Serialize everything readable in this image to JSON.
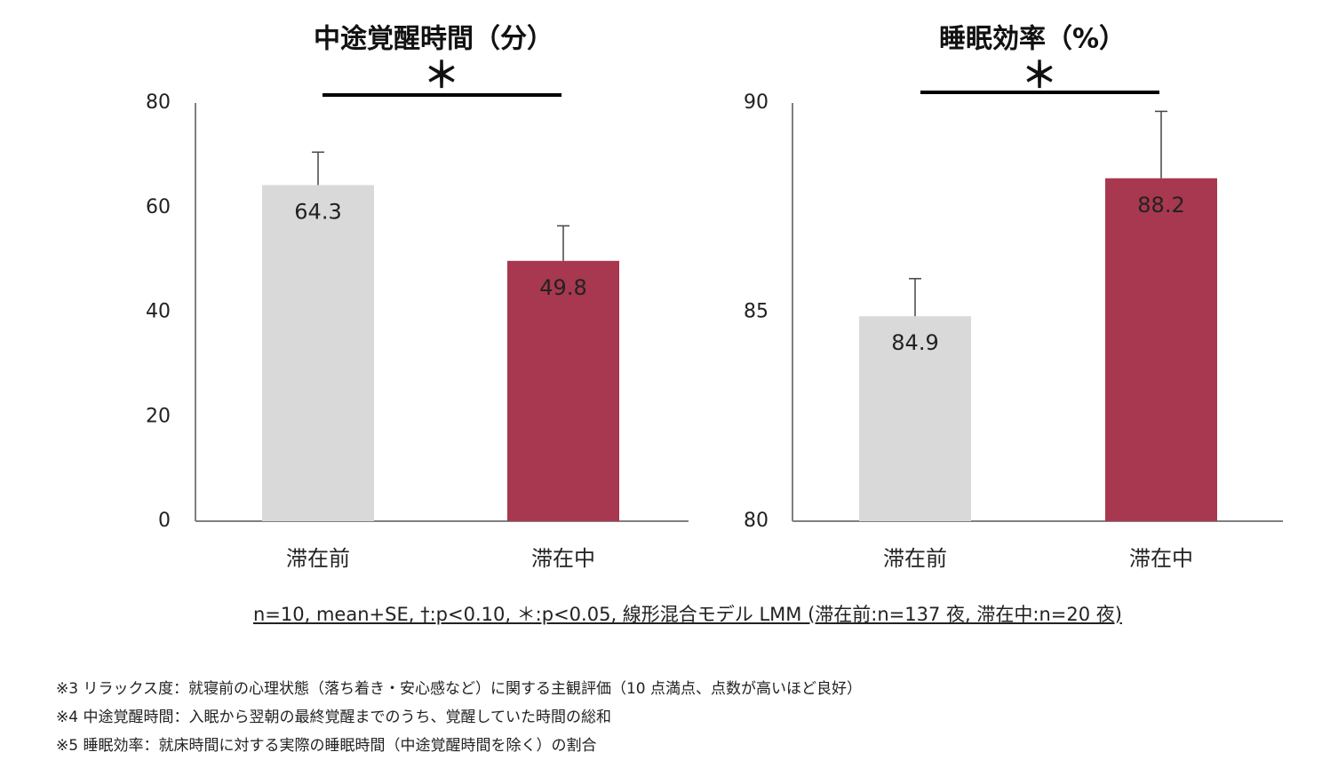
{
  "chart_data": [
    {
      "type": "bar",
      "title": "中途覚醒時間（分）",
      "categories": [
        "滞在前",
        "滞在中"
      ],
      "values": [
        64.3,
        49.8
      ],
      "data_labels": [
        "64.3",
        "49.8"
      ],
      "error_upper": [
        70.6,
        56.5
      ],
      "ylim": [
        0,
        80
      ],
      "yticks": [
        "0",
        "20",
        "40",
        "60",
        "80"
      ],
      "significance": "＊",
      "colors": [
        "#d9d9d9",
        "#a8384f"
      ],
      "grid": false
    },
    {
      "type": "bar",
      "title": "睡眠効率（%）",
      "categories": [
        "滞在前",
        "滞在中"
      ],
      "values": [
        84.9,
        88.2
      ],
      "data_labels": [
        "84.9",
        "88.2"
      ],
      "error_upper": [
        85.8,
        89.8
      ],
      "ylim": [
        80,
        90
      ],
      "yticks": [
        "80",
        "85",
        "90"
      ],
      "significance": "＊",
      "colors": [
        "#d9d9d9",
        "#a8384f"
      ],
      "grid": false
    }
  ],
  "stats_note": "n=10, mean+SE, †:p<0.10, ＊:p<0.05, 線形混合モデル LMM (滞在前:n=137 夜, 滞在中:n=20 夜)",
  "footnotes": [
    "※3 リラックス度：就寝前の心理状態（落ち着き・安心感など）に関する主観評価（10 点満点、点数が高いほど良好）",
    "※4 中途覚醒時間：入眠から翌朝の最終覚醒までのうち、覚醒していた時間の総和",
    "※5 睡眠効率：就床時間に対する実際の睡眠時間（中途覚醒時間を除く）の割合"
  ]
}
